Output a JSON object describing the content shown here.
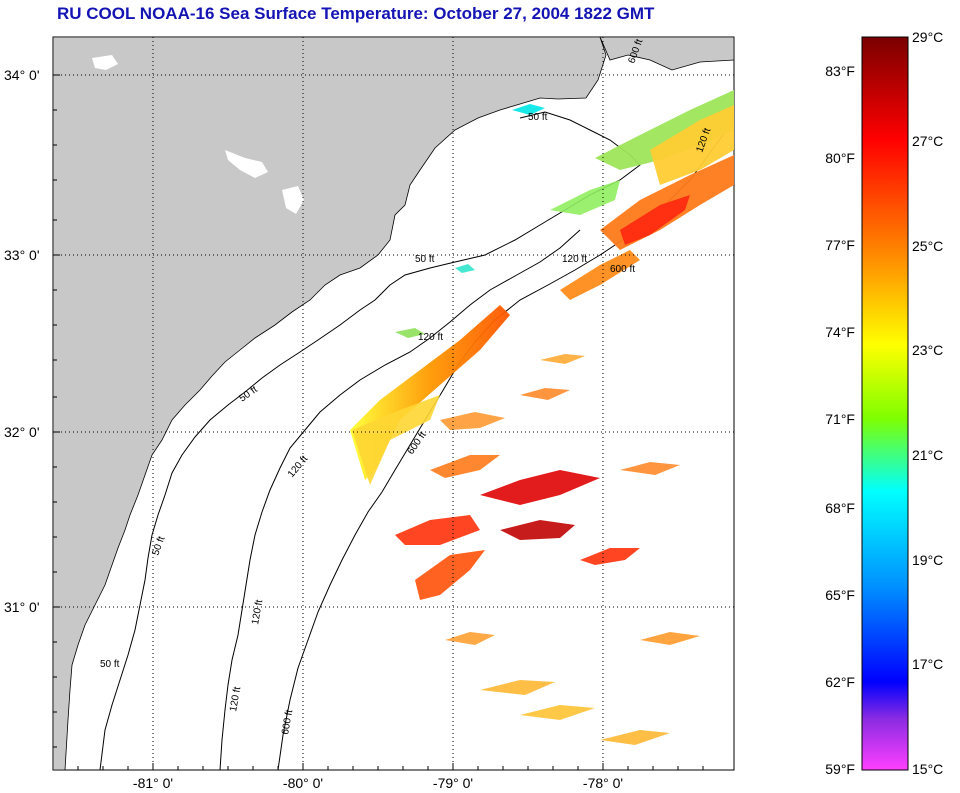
{
  "title": "RU COOL  NOAA-16  Sea Surface Temperature:  October 27, 2004 1822 GMT",
  "map": {
    "lat_labels": [
      "34° 0'",
      "33° 0'",
      "32° 0'",
      "31° 0'"
    ],
    "lon_labels": [
      "-81° 0'",
      "-80° 0'",
      "-79° 0'",
      "-78° 0'"
    ],
    "contour_labels": [
      "50 ft",
      "50 ft",
      "50 ft",
      "50 ft",
      "50 ft",
      "120 ft",
      "120 ft",
      "120 ft",
      "120 ft",
      "120 ft",
      "600 ft",
      "600 ft",
      "600 ft",
      "600 ft",
      "120 ft"
    ],
    "colors": {
      "land": "#c8c8c8",
      "ocean": "#ffffff",
      "grid": "#000000"
    }
  },
  "colorbar": {
    "fahrenheit_labels": [
      "83°F",
      "80°F",
      "77°F",
      "74°F",
      "71°F",
      "68°F",
      "65°F",
      "62°F",
      "59°F"
    ],
    "celsius_labels": [
      "29°C",
      "27°C",
      "25°C",
      "23°C",
      "21°C",
      "19°C",
      "17°C",
      "15°C"
    ],
    "gradient_stops": [
      "#8b0000",
      "#ff0000",
      "#ff8c00",
      "#ffff00",
      "#7fff00",
      "#00ffff",
      "#0080ff",
      "#0000ff",
      "#8000ff",
      "#ff40ff"
    ]
  }
}
